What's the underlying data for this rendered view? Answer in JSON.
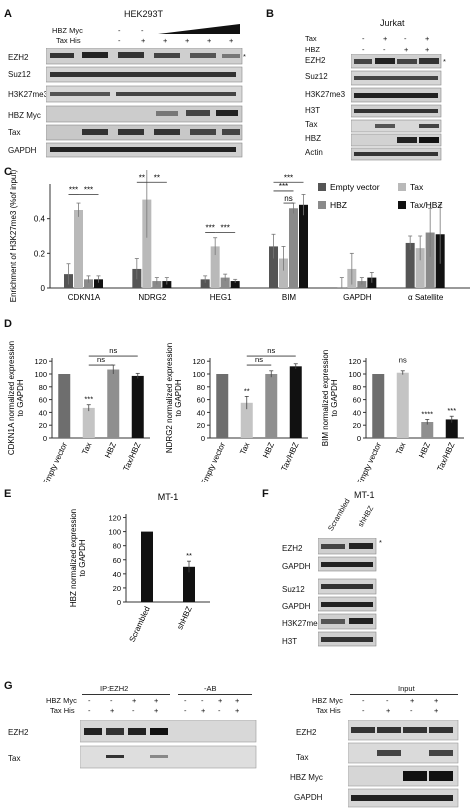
{
  "panels": {
    "A": {
      "letter": "A",
      "cell_line": "HEK293T",
      "row_labels": [
        "HBZ Myc",
        "Tax His"
      ],
      "signs_row1": [
        "-",
        "-"
      ],
      "signs_row2": [
        "-",
        "+",
        "+",
        "+",
        "+",
        "+"
      ],
      "blot_labels": [
        "EZH2",
        "Suz12",
        "H3K27me3",
        "HBZ Myc",
        "Tax",
        "GAPDH"
      ],
      "asterisk": "*"
    },
    "B": {
      "letter": "B",
      "cell_line": "Jurkat",
      "row_labels": [
        "Tax",
        "HBZ"
      ],
      "signs_row1": [
        "-",
        "+",
        "-",
        "+"
      ],
      "signs_row2": [
        "-",
        "-",
        "+",
        "+"
      ],
      "blot_labels": [
        "EZH2",
        "Suz12",
        "H3K27me3",
        "H3T",
        "Tax",
        "HBZ",
        "Actin"
      ],
      "asterisk": "*"
    },
    "C": {
      "letter": "C"
    },
    "D": {
      "letter": "D"
    },
    "E": {
      "letter": "E"
    },
    "F": {
      "letter": "F",
      "cell_line": "MT-1",
      "lanes": [
        "Scrambled",
        "shHBZ"
      ],
      "blot_labels": [
        "EZH2",
        "GAPDH",
        "Suz12",
        "GAPDH",
        "H3K27me3",
        "H3T"
      ],
      "asterisk": "*"
    },
    "G": {
      "letter": "G",
      "ip_title": "IP:EZH2",
      "ab_title": "-AB",
      "input_title": "Input",
      "row_labels": [
        "HBZ Myc",
        "Tax His"
      ],
      "ip_signs_row1": [
        "-",
        "-",
        "+",
        "+"
      ],
      "ip_signs_row2": [
        "-",
        "+",
        "-",
        "+"
      ],
      "ab_signs_row1": [
        "-",
        "-",
        "+",
        "+"
      ],
      "ab_signs_row2": [
        "-",
        "+",
        "-",
        "+"
      ],
      "in_signs_row1": [
        "-",
        "-",
        "+",
        "+"
      ],
      "in_signs_row2": [
        "-",
        "+",
        "-",
        "+"
      ],
      "ip_blot_labels": [
        "EZH2",
        "Tax"
      ],
      "input_blot_labels": [
        "EZH2",
        "Tax",
        "HBZ Myc",
        "GAPDH"
      ]
    }
  },
  "chart_data": [
    {
      "id": "C",
      "type": "bar",
      "ylabel": "Enrichment of H3K27me3 (%of input)",
      "ylim": [
        0,
        0.6
      ],
      "yticks": [
        "0",
        "0.2",
        "0.4"
      ],
      "categories": [
        "CDKN1A",
        "NDRG2",
        "HEG1",
        "BIM",
        "GAPDH",
        "α Satellite"
      ],
      "series": [
        {
          "name": "Empty vector",
          "color": "#555555",
          "values": [
            0.08,
            0.11,
            0.05,
            0.24,
            0.0,
            0.26
          ],
          "errors": [
            0.06,
            0.06,
            0.02,
            0.07,
            0.06,
            0.04
          ]
        },
        {
          "name": "Tax",
          "color": "#b9b9b9",
          "values": [
            0.45,
            0.51,
            0.24,
            0.17,
            0.11,
            0.23
          ],
          "errors": [
            0.04,
            0.22,
            0.05,
            0.07,
            0.09,
            0.07
          ]
        },
        {
          "name": "HBZ",
          "color": "#8a8a8a",
          "values": [
            0.05,
            0.04,
            0.06,
            0.46,
            0.04,
            0.32
          ],
          "errors": [
            0.02,
            0.02,
            0.02,
            0.03,
            0.02,
            0.14
          ]
        },
        {
          "name": "Tax/HBZ",
          "color": "#111111",
          "values": [
            0.05,
            0.04,
            0.04,
            0.48,
            0.06,
            0.31
          ],
          "errors": [
            0.02,
            0.02,
            0.01,
            0.06,
            0.03,
            0.17
          ]
        }
      ],
      "annotations": [
        {
          "category": "CDKN1A",
          "text": "***"
        },
        {
          "category": "CDKN1A",
          "text": "***"
        },
        {
          "category": "NDRG2",
          "text": "**"
        },
        {
          "category": "NDRG2",
          "text": "**"
        },
        {
          "category": "HEG1",
          "text": "***"
        },
        {
          "category": "HEG1",
          "text": "***"
        },
        {
          "category": "BIM",
          "text": "ns"
        },
        {
          "category": "BIM",
          "text": "***"
        },
        {
          "category": "BIM",
          "text": "***"
        }
      ]
    },
    {
      "id": "D1",
      "type": "bar",
      "ylabel": "CDKN1A normalized expression to GAPDH",
      "ylim": [
        0,
        125
      ],
      "yticks": [
        "0",
        "20",
        "40",
        "60",
        "80",
        "100",
        "120"
      ],
      "categories": [
        "Empty vector",
        "Tax",
        "HBZ",
        "Tax/HBZ"
      ],
      "values": [
        100,
        47,
        107,
        97
      ],
      "errors": [
        0,
        5,
        7,
        4
      ],
      "colors": [
        "#6e6e6e",
        "#c4c4c4",
        "#8f8f8f",
        "#111111"
      ],
      "annotations": [
        "***",
        "ns",
        "ns"
      ]
    },
    {
      "id": "D2",
      "type": "bar",
      "ylabel": "NDRG2 normalized expression to GAPDH",
      "ylim": [
        0,
        125
      ],
      "yticks": [
        "0",
        "20",
        "40",
        "60",
        "80",
        "100",
        "120"
      ],
      "categories": [
        "Empty vector",
        "Tax",
        "HBZ",
        "Tax/HBZ"
      ],
      "values": [
        100,
        55,
        100,
        112
      ],
      "errors": [
        0,
        10,
        5,
        4
      ],
      "colors": [
        "#6e6e6e",
        "#c4c4c4",
        "#8f8f8f",
        "#111111"
      ],
      "annotations": [
        "**",
        "ns",
        "ns"
      ]
    },
    {
      "id": "D3",
      "type": "bar",
      "ylabel": "BIM normalized expression to GAPDH",
      "ylim": [
        0,
        125
      ],
      "yticks": [
        "0",
        "20",
        "40",
        "60",
        "80",
        "100",
        "120"
      ],
      "categories": [
        "Empty vector",
        "Tax",
        "HBZ",
        "Tax/HBZ"
      ],
      "values": [
        100,
        102,
        25,
        29
      ],
      "errors": [
        0,
        3,
        4,
        5
      ],
      "colors": [
        "#6e6e6e",
        "#c4c4c4",
        "#8f8f8f",
        "#111111"
      ],
      "annotations": [
        "ns",
        "****",
        "***"
      ]
    },
    {
      "id": "E",
      "type": "bar",
      "title": "MT-1",
      "ylabel": "HBZ normalized expression to GAPDH",
      "ylim": [
        0,
        125
      ],
      "yticks": [
        "0",
        "20",
        "40",
        "60",
        "80",
        "100",
        "120"
      ],
      "categories": [
        "Scrambled",
        "shHBZ"
      ],
      "values": [
        100,
        50
      ],
      "errors": [
        0,
        8
      ],
      "colors": [
        "#111111",
        "#111111"
      ],
      "annotations": [
        "**"
      ]
    }
  ]
}
